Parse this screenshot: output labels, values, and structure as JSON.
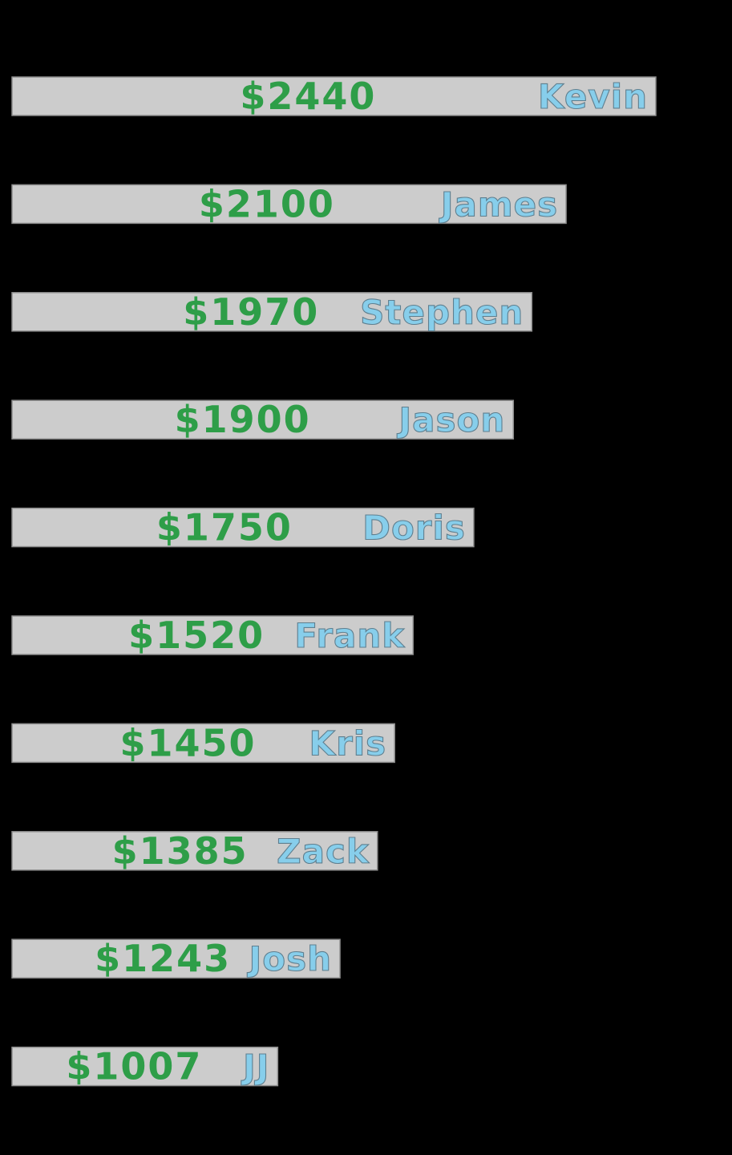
{
  "colors": {
    "background": "#000000",
    "bar_fill": "#cccccc",
    "bar_stroke": "#8c8c8c",
    "amount_text": "#2e9e48",
    "name_text": "#87ceeb",
    "name_outline": "#5f7f8f"
  },
  "chart_data": {
    "type": "bar",
    "orientation": "horizontal",
    "title": "",
    "xlabel": "",
    "ylabel": "",
    "xlim": [
      0,
      2440
    ],
    "grid": false,
    "legend": "none",
    "categories": [
      "Kevin",
      "James",
      "Stephen",
      "Jason",
      "Doris",
      "Frank",
      "Kris",
      "Zack",
      "Josh",
      "JJ"
    ],
    "values": [
      2440,
      2100,
      1970,
      1900,
      1750,
      1520,
      1450,
      1385,
      1243,
      1007
    ],
    "value_labels": [
      "$2440",
      "$2100",
      "$1970",
      "$1900",
      "$1750",
      "$1520",
      "$1450",
      "$1385",
      "$1243",
      "$1007"
    ]
  }
}
